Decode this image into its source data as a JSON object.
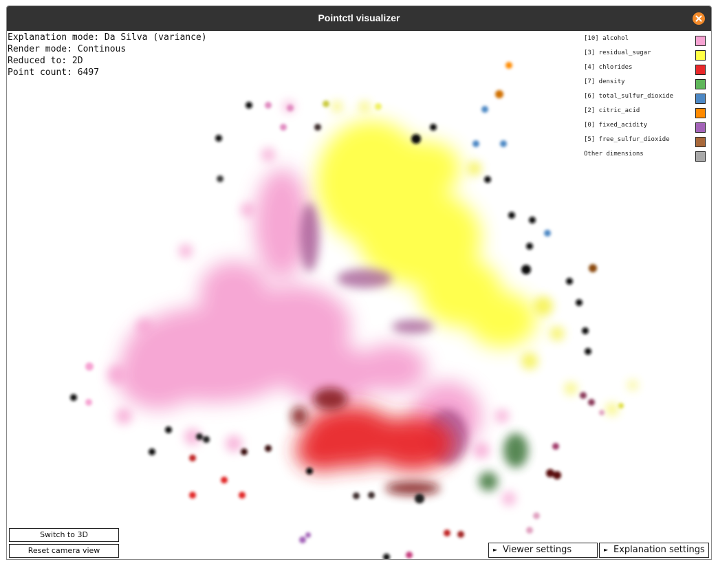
{
  "window": {
    "title": "Pointctl visualizer"
  },
  "info": {
    "explanation_mode": "Explanation mode: Da Silva (variance)",
    "render_mode": "Render mode: Continous",
    "reduced_to": "Reduced to: 2D",
    "point_count": "Point count: 6497"
  },
  "legend": [
    {
      "label": "[10] alcohol",
      "color": "#f6a3d2"
    },
    {
      "label": "[3] residual_sugar",
      "color": "#ffff44"
    },
    {
      "label": "[4] chlorides",
      "color": "#e8282a"
    },
    {
      "label": "[7] density",
      "color": "#5fb75a"
    },
    {
      "label": "[6] total_sulfur_dioxide",
      "color": "#4d88c4"
    },
    {
      "label": "[2] citric_acid",
      "color": "#ff8a00"
    },
    {
      "label": "[0] fixed_acidity",
      "color": "#a363b8"
    },
    {
      "label": "[5] free_sulfur_dioxide",
      "color": "#a8683a"
    },
    {
      "label": "Other dimensions",
      "color": "#a8a8a8"
    }
  ],
  "buttons": {
    "switch_3d": "Switch to 3D",
    "reset_camera": "Reset camera view",
    "viewer_settings": "Viewer settings",
    "explanation_settings": "Explanation settings"
  },
  "icons": {
    "close": "close-x-icon",
    "collapse_arrow": "triangle-right-icon"
  }
}
